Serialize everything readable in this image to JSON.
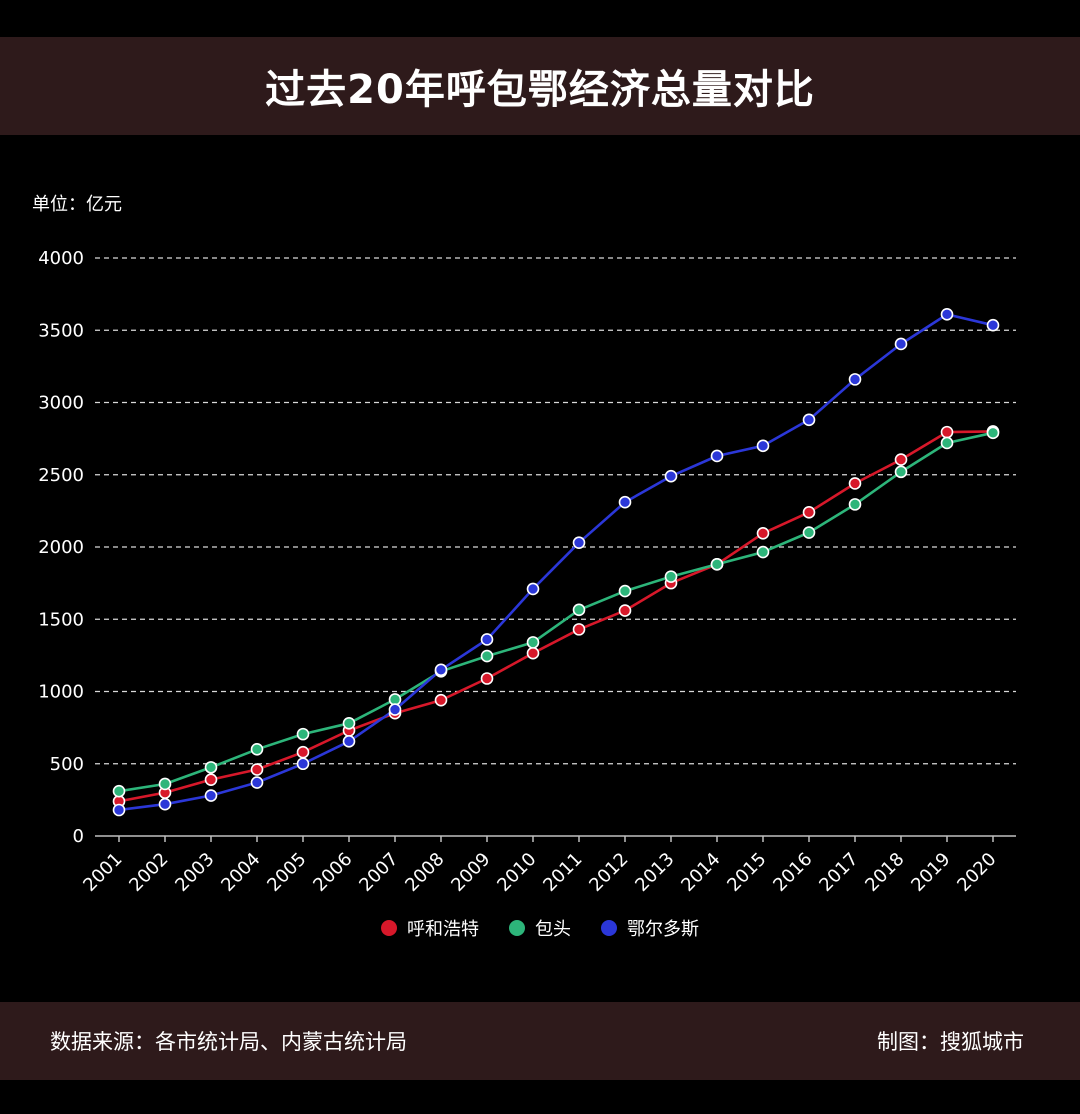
{
  "header": {
    "title": "过去20年呼包鄂经济总量对比"
  },
  "unit_label": "单位：亿元",
  "footer": {
    "source": "数据来源：各市统计局、内蒙古统计局",
    "credit": "制图：搜狐城市"
  },
  "chart_data": {
    "type": "line",
    "title": "过去20年呼包鄂经济总量对比",
    "xlabel": "",
    "ylabel": "单位：亿元",
    "ylim": [
      0,
      4000
    ],
    "yticks": [
      0,
      500,
      1000,
      1500,
      2000,
      2500,
      3000,
      3500,
      4000
    ],
    "grid": true,
    "legend_position": "bottom",
    "x": [
      "2001",
      "2002",
      "2003",
      "2004",
      "2005",
      "2006",
      "2007",
      "2008",
      "2009",
      "2010",
      "2011",
      "2012",
      "2013",
      "2014",
      "2015",
      "2016",
      "2017",
      "2018",
      "2019",
      "2020"
    ],
    "series": [
      {
        "name": "呼和浩特",
        "color": "#d7182a",
        "values": [
          240,
          300,
          390,
          460,
          580,
          730,
          850,
          940,
          1090,
          1265,
          1430,
          1560,
          1750,
          1880,
          2095,
          2240,
          2440,
          2605,
          2795,
          2800
        ]
      },
      {
        "name": "包头",
        "color": "#2db57a",
        "values": [
          310,
          360,
          475,
          600,
          705,
          780,
          945,
          1140,
          1245,
          1340,
          1565,
          1695,
          1795,
          1880,
          1965,
          2100,
          2295,
          2520,
          2720,
          2790
        ]
      },
      {
        "name": "鄂尔多斯",
        "color": "#2b37d8",
        "values": [
          180,
          220,
          280,
          370,
          500,
          655,
          875,
          1150,
          1360,
          1710,
          2030,
          2310,
          2490,
          2630,
          2700,
          2880,
          3160,
          3405,
          3610,
          3535
        ]
      }
    ]
  }
}
